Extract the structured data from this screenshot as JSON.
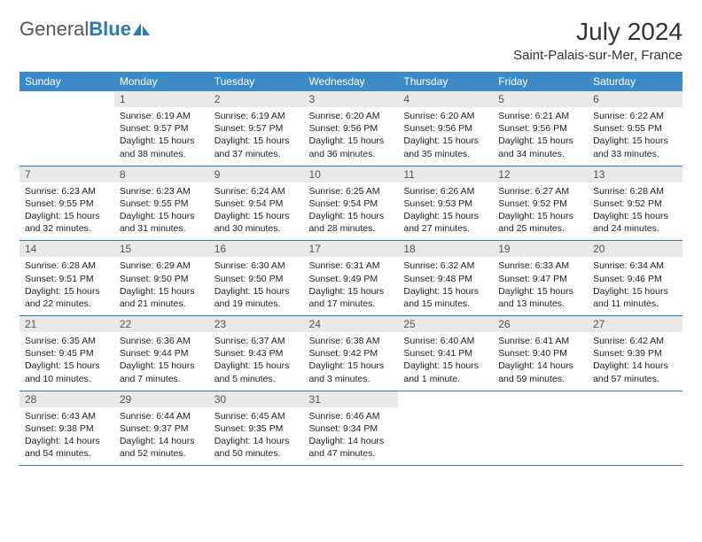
{
  "logo": {
    "text_left": "General",
    "text_right": "Blue"
  },
  "title": "July 2024",
  "location": "Saint-Palais-sur-Mer, France",
  "weekdays": [
    "Sunday",
    "Monday",
    "Tuesday",
    "Wednesday",
    "Thursday",
    "Friday",
    "Saturday"
  ],
  "colors": {
    "header_bg": "#3b8bc9",
    "header_text": "#ffffff",
    "daynum_bg": "#e9e9e9",
    "rule": "#2a7ab8",
    "logo_accent": "#2a7ab8"
  },
  "first_weekday_index": 1,
  "days": [
    {
      "n": 1,
      "sunrise": "6:19 AM",
      "sunset": "9:57 PM",
      "daylight": "15 hours and 38 minutes."
    },
    {
      "n": 2,
      "sunrise": "6:19 AM",
      "sunset": "9:57 PM",
      "daylight": "15 hours and 37 minutes."
    },
    {
      "n": 3,
      "sunrise": "6:20 AM",
      "sunset": "9:56 PM",
      "daylight": "15 hours and 36 minutes."
    },
    {
      "n": 4,
      "sunrise": "6:20 AM",
      "sunset": "9:56 PM",
      "daylight": "15 hours and 35 minutes."
    },
    {
      "n": 5,
      "sunrise": "6:21 AM",
      "sunset": "9:56 PM",
      "daylight": "15 hours and 34 minutes."
    },
    {
      "n": 6,
      "sunrise": "6:22 AM",
      "sunset": "9:55 PM",
      "daylight": "15 hours and 33 minutes."
    },
    {
      "n": 7,
      "sunrise": "6:23 AM",
      "sunset": "9:55 PM",
      "daylight": "15 hours and 32 minutes."
    },
    {
      "n": 8,
      "sunrise": "6:23 AM",
      "sunset": "9:55 PM",
      "daylight": "15 hours and 31 minutes."
    },
    {
      "n": 9,
      "sunrise": "6:24 AM",
      "sunset": "9:54 PM",
      "daylight": "15 hours and 30 minutes."
    },
    {
      "n": 10,
      "sunrise": "6:25 AM",
      "sunset": "9:54 PM",
      "daylight": "15 hours and 28 minutes."
    },
    {
      "n": 11,
      "sunrise": "6:26 AM",
      "sunset": "9:53 PM",
      "daylight": "15 hours and 27 minutes."
    },
    {
      "n": 12,
      "sunrise": "6:27 AM",
      "sunset": "9:52 PM",
      "daylight": "15 hours and 25 minutes."
    },
    {
      "n": 13,
      "sunrise": "6:28 AM",
      "sunset": "9:52 PM",
      "daylight": "15 hours and 24 minutes."
    },
    {
      "n": 14,
      "sunrise": "6:28 AM",
      "sunset": "9:51 PM",
      "daylight": "15 hours and 22 minutes."
    },
    {
      "n": 15,
      "sunrise": "6:29 AM",
      "sunset": "9:50 PM",
      "daylight": "15 hours and 21 minutes."
    },
    {
      "n": 16,
      "sunrise": "6:30 AM",
      "sunset": "9:50 PM",
      "daylight": "15 hours and 19 minutes."
    },
    {
      "n": 17,
      "sunrise": "6:31 AM",
      "sunset": "9:49 PM",
      "daylight": "15 hours and 17 minutes."
    },
    {
      "n": 18,
      "sunrise": "6:32 AM",
      "sunset": "9:48 PM",
      "daylight": "15 hours and 15 minutes."
    },
    {
      "n": 19,
      "sunrise": "6:33 AM",
      "sunset": "9:47 PM",
      "daylight": "15 hours and 13 minutes."
    },
    {
      "n": 20,
      "sunrise": "6:34 AM",
      "sunset": "9:46 PM",
      "daylight": "15 hours and 11 minutes."
    },
    {
      "n": 21,
      "sunrise": "6:35 AM",
      "sunset": "9:45 PM",
      "daylight": "15 hours and 10 minutes."
    },
    {
      "n": 22,
      "sunrise": "6:36 AM",
      "sunset": "9:44 PM",
      "daylight": "15 hours and 7 minutes."
    },
    {
      "n": 23,
      "sunrise": "6:37 AM",
      "sunset": "9:43 PM",
      "daylight": "15 hours and 5 minutes."
    },
    {
      "n": 24,
      "sunrise": "6:38 AM",
      "sunset": "9:42 PM",
      "daylight": "15 hours and 3 minutes."
    },
    {
      "n": 25,
      "sunrise": "6:40 AM",
      "sunset": "9:41 PM",
      "daylight": "15 hours and 1 minute."
    },
    {
      "n": 26,
      "sunrise": "6:41 AM",
      "sunset": "9:40 PM",
      "daylight": "14 hours and 59 minutes."
    },
    {
      "n": 27,
      "sunrise": "6:42 AM",
      "sunset": "9:39 PM",
      "daylight": "14 hours and 57 minutes."
    },
    {
      "n": 28,
      "sunrise": "6:43 AM",
      "sunset": "9:38 PM",
      "daylight": "14 hours and 54 minutes."
    },
    {
      "n": 29,
      "sunrise": "6:44 AM",
      "sunset": "9:37 PM",
      "daylight": "14 hours and 52 minutes."
    },
    {
      "n": 30,
      "sunrise": "6:45 AM",
      "sunset": "9:35 PM",
      "daylight": "14 hours and 50 minutes."
    },
    {
      "n": 31,
      "sunrise": "6:46 AM",
      "sunset": "9:34 PM",
      "daylight": "14 hours and 47 minutes."
    }
  ],
  "labels": {
    "sunrise": "Sunrise:",
    "sunset": "Sunset:",
    "daylight": "Daylight:"
  }
}
